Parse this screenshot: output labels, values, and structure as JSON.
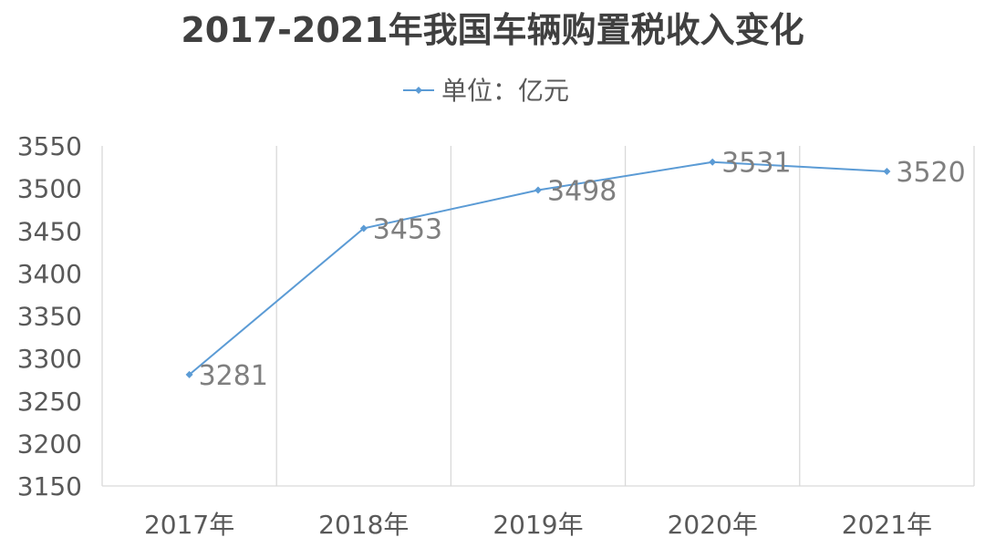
{
  "chart_data": {
    "type": "line",
    "title": "2017-2021年我国车辆购置税收入变化",
    "legend_position": "top",
    "grid": {
      "vertical": true,
      "horizontal": false
    },
    "categories": [
      "2017年",
      "2018年",
      "2019年",
      "2020年",
      "2021年"
    ],
    "series": [
      {
        "name": "单位：亿元",
        "values": [
          3281,
          3453,
          3498,
          3531,
          3520
        ],
        "color": "#5b9bd5"
      }
    ],
    "ylim": [
      3150,
      3550
    ],
    "yticks": [
      3150,
      3200,
      3250,
      3300,
      3350,
      3400,
      3450,
      3500,
      3550
    ],
    "xlabel": "",
    "ylabel": ""
  }
}
